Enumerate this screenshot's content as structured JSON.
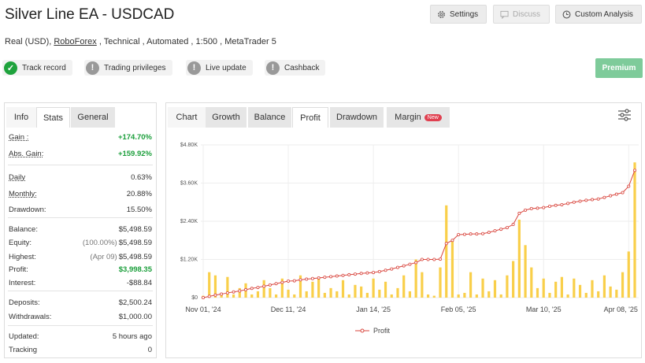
{
  "header": {
    "title": "Silver Line EA - USDCAD",
    "buttons": [
      "Settings",
      "Discuss",
      "Custom Analysis"
    ],
    "subtitle": {
      "before": "Real (USD), ",
      "link": "RoboForex",
      "after": " , Technical , Automated , 1:500 , MetaTrader 5"
    },
    "badges": [
      "Track record",
      "Trading privileges",
      "Live update",
      "Cashback"
    ],
    "premium": "Premium"
  },
  "left_tabs": [
    "Info",
    "Stats",
    "General"
  ],
  "stats": [
    [
      {
        "label": "Gain :",
        "value": "+174.70%",
        "color": "#1a9e3a"
      },
      {
        "label": "Abs. Gain:",
        "value": "+159.92%",
        "color": "#1a9e3a"
      }
    ],
    [
      {
        "label": "Daily",
        "value": "0.63%"
      },
      {
        "label": "Monthly:",
        "value": "20.88%"
      },
      {
        "label": "Drawdown:",
        "value": "15.50%"
      }
    ],
    [
      {
        "label": "Balance:",
        "value": "$5,498.59"
      },
      {
        "label": "Equity:",
        "note": "(100.00%)",
        "value": "$5,498.59"
      },
      {
        "label": "Highest:",
        "note": "(Apr 09)",
        "value": "$5,498.59"
      },
      {
        "label": "Profit:",
        "value": "$3,998.35",
        "color": "#1a9e3a"
      },
      {
        "label": "Interest:",
        "value": "-$88.84"
      }
    ],
    [
      {
        "label": "Deposits:",
        "value": "$2,500.24"
      },
      {
        "label": "Withdrawals:",
        "value": "$1,000.00"
      }
    ],
    [
      {
        "label": "Updated:",
        "value": "5 hours ago"
      },
      {
        "label": "Tracking",
        "value": "0"
      }
    ]
  ],
  "chart_tabs": [
    "Chart",
    "Growth",
    "Balance",
    "Profit",
    "Drawdown",
    "Margin"
  ],
  "chart_tab_badge": "New",
  "chart_data": {
    "type": "bar-line",
    "categories": [
      "Nov 01, '24",
      null,
      null,
      null,
      null,
      null,
      null,
      null,
      null,
      null,
      null,
      null,
      null,
      null,
      "Dec 11, '24",
      null,
      null,
      null,
      null,
      null,
      null,
      null,
      null,
      null,
      null,
      null,
      null,
      null,
      "Jan 14, '25",
      null,
      null,
      null,
      null,
      null,
      null,
      null,
      null,
      null,
      null,
      null,
      null,
      null,
      "Feb 05, '25",
      null,
      null,
      null,
      null,
      null,
      null,
      null,
      null,
      null,
      null,
      null,
      null,
      null,
      "Mar 10, '25",
      null,
      null,
      null,
      null,
      null,
      null,
      null,
      null,
      null,
      null,
      null,
      null,
      null,
      "Apr 08, '25",
      null
    ],
    "series": [
      {
        "type": "bar",
        "color": "#f9cf4a",
        "values": [
          60,
          800,
          700,
          150,
          650,
          100,
          300,
          450,
          100,
          200,
          550,
          300,
          100,
          600,
          250,
          100,
          700,
          200,
          500,
          650,
          150,
          300,
          200,
          550,
          100,
          400,
          350,
          150,
          600,
          250,
          500,
          100,
          300,
          700,
          200,
          1200,
          800,
          100,
          60,
          950,
          2900,
          1800,
          100,
          150,
          800,
          100,
          600,
          200,
          550,
          100,
          700,
          1150,
          2450,
          1650,
          950,
          300,
          600,
          150,
          500,
          650,
          100,
          600,
          400,
          150,
          550,
          200,
          700,
          350,
          250,
          800,
          1450,
          4250
        ]
      },
      {
        "type": "line",
        "name": "Profit",
        "color": "#d9463e",
        "values": [
          0,
          40,
          80,
          110,
          150,
          180,
          210,
          250,
          290,
          320,
          360,
          400,
          440,
          480,
          520,
          530,
          560,
          580,
          600,
          620,
          640,
          660,
          680,
          700,
          720,
          740,
          760,
          775,
          790,
          820,
          860,
          900,
          950,
          1000,
          1050,
          1100,
          1200,
          1200,
          1200,
          1210,
          1700,
          1800,
          1980,
          1990,
          2000,
          2000,
          2010,
          2050,
          2100,
          2150,
          2200,
          2300,
          2650,
          2750,
          2800,
          2810,
          2830,
          2870,
          2900,
          2920,
          2960,
          3000,
          3030,
          3060,
          3080,
          3100,
          3150,
          3200,
          3250,
          3300,
          3500,
          4000
        ]
      }
    ],
    "ylim": [
      0,
      4800
    ],
    "yticks": [
      {
        "value": 0,
        "label": "$0"
      },
      {
        "value": 1200,
        "label": "$1.20K"
      },
      {
        "value": 2400,
        "label": "$2.40K"
      },
      {
        "value": 3600,
        "label": "$3.60K"
      },
      {
        "value": 4800,
        "label": "$4.80K"
      }
    ],
    "grid": true,
    "legend": "bottom"
  }
}
